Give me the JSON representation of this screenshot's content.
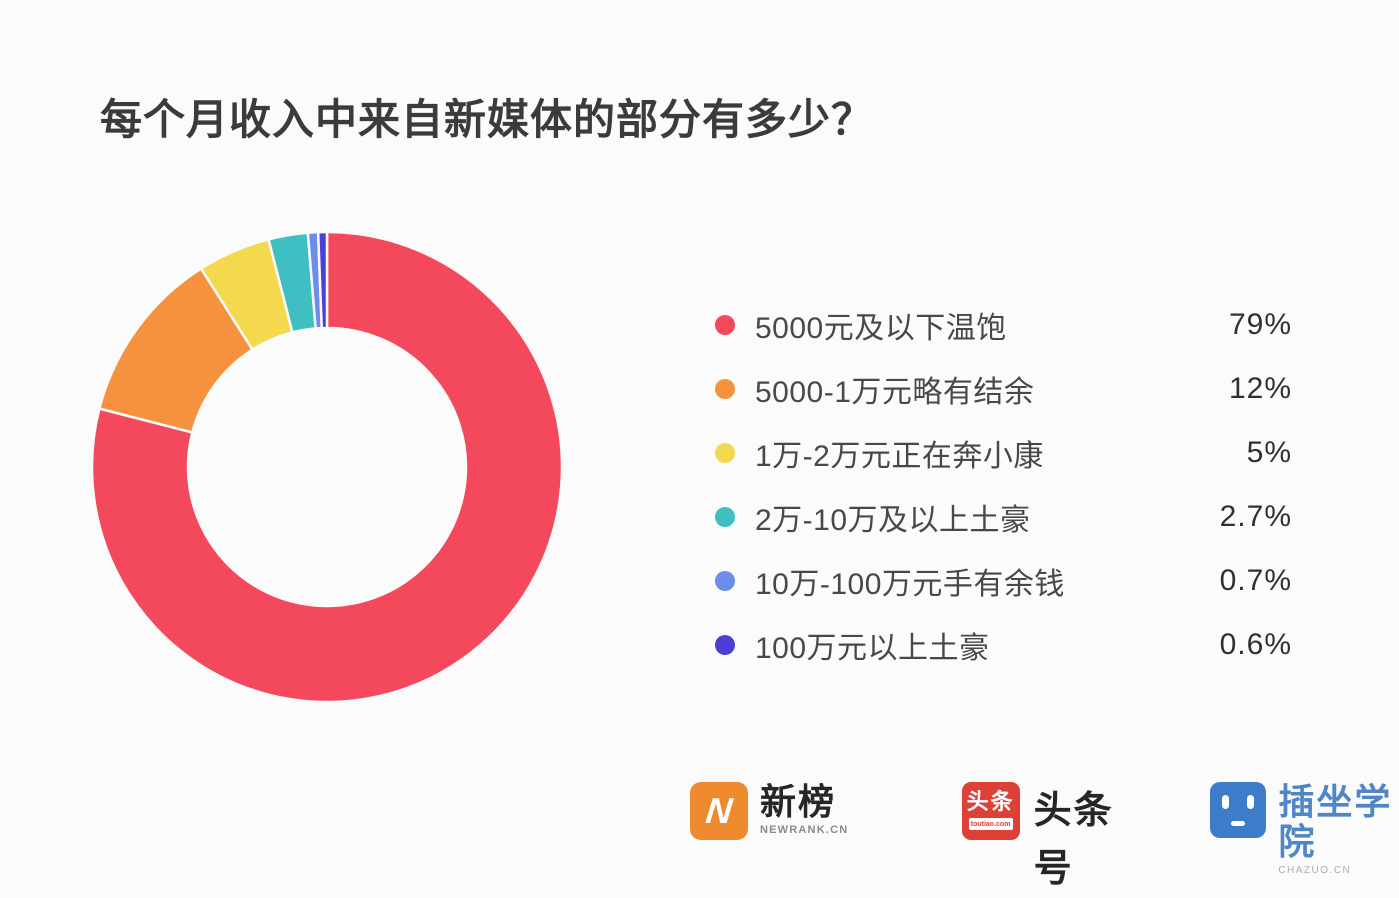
{
  "page": {
    "background": "#FBFBFB"
  },
  "title": "每个月收入中来自新媒体的部分有多少？",
  "chart_data": {
    "type": "pie",
    "variant": "donut",
    "title": "每个月收入中来自新媒体的部分有多少？",
    "start_angle_deg": 0,
    "direction": "clockwise",
    "inner_radius_ratio": 0.59,
    "legend_position": "right",
    "gridlines": false,
    "items": [
      {
        "label": "5000元及以下温饱",
        "value": 79,
        "display": "79%",
        "color": "#F4485C"
      },
      {
        "label": "5000-1万元略有结余",
        "value": 12,
        "display": "12%",
        "color": "#F6923E"
      },
      {
        "label": "1万-2万元正在奔小康",
        "value": 5,
        "display": "5%",
        "color": "#F4D84E"
      },
      {
        "label": "2万-10万及以上土豪",
        "value": 2.7,
        "display": "2.7%",
        "color": "#3FBFC2"
      },
      {
        "label": "10万-100万元手有余钱",
        "value": 0.7,
        "display": "0.7%",
        "color": "#6C8EE9"
      },
      {
        "label": "100万元以上土豪",
        "value": 0.6,
        "display": "0.6%",
        "color": "#4B3FD8"
      }
    ]
  },
  "footer": {
    "logos": {
      "newrank": {
        "name": "新榜",
        "subtext": "NEWRANK.CN",
        "icon_glyph": "N",
        "icon_color": "#F08A2E"
      },
      "toutiao": {
        "name": "头条号",
        "badge_text": "头条",
        "badge_subtext": "toutiao.com",
        "icon_color": "#DC4037"
      },
      "chazuo": {
        "name": "插坐学院",
        "subtext": "CHAZUO.CN",
        "icon_color": "#3C7CC8",
        "text_color": "#4E86C6"
      }
    }
  }
}
